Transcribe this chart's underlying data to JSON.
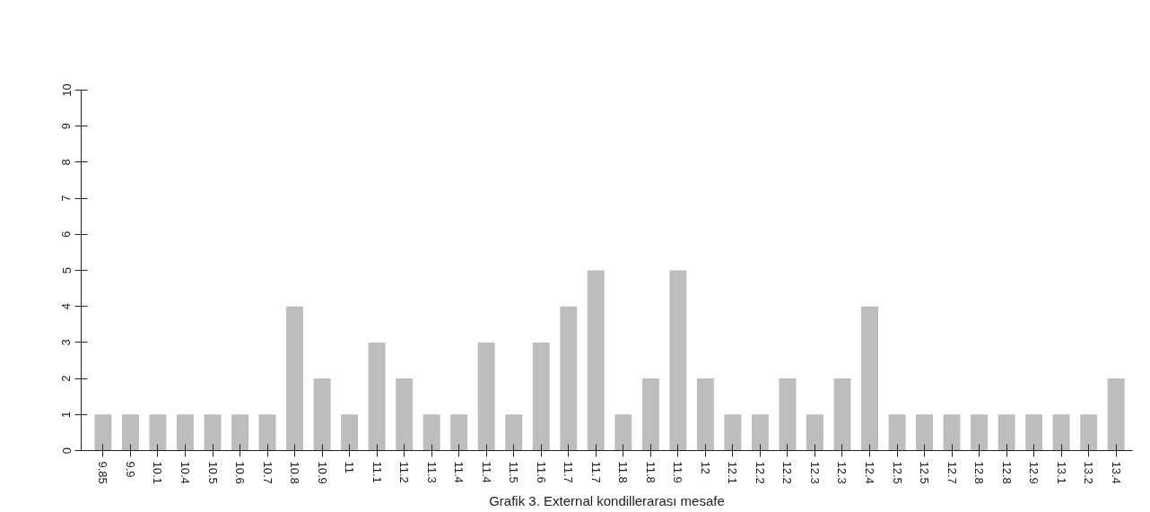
{
  "chart_data": {
    "type": "bar",
    "title": "Grafik 3. External kondillerarası mesafe",
    "categories": [
      "9.85",
      "9.9",
      "10.1",
      "10.4",
      "10.5",
      "10.6",
      "10.7",
      "10.8",
      "10.9",
      "11",
      "11.1",
      "11.2",
      "11.3",
      "11.4",
      "11.4",
      "11.5",
      "11.6",
      "11.7",
      "11.7",
      "11.8",
      "11.8",
      "11.9",
      "12",
      "12.1",
      "12.2",
      "12.2",
      "12.3",
      "12.3",
      "12.4",
      "12.5",
      "12.5",
      "12.7",
      "12.8",
      "12.8",
      "12.9",
      "13.1",
      "13.2",
      "13.4"
    ],
    "values": [
      1,
      1,
      1,
      1,
      1,
      1,
      1,
      4,
      2,
      1,
      3,
      2,
      1,
      1,
      3,
      1,
      3,
      4,
      5,
      1,
      2,
      5,
      2,
      1,
      1,
      2,
      1,
      2,
      4,
      1,
      1,
      1,
      1,
      1,
      1,
      1,
      1,
      2
    ],
    "color": "#bdbdbd",
    "ylim": [
      0,
      10
    ],
    "yticks": [
      0,
      1,
      2,
      3,
      4,
      5,
      6,
      7,
      8,
      9,
      10
    ],
    "grid": false
  }
}
